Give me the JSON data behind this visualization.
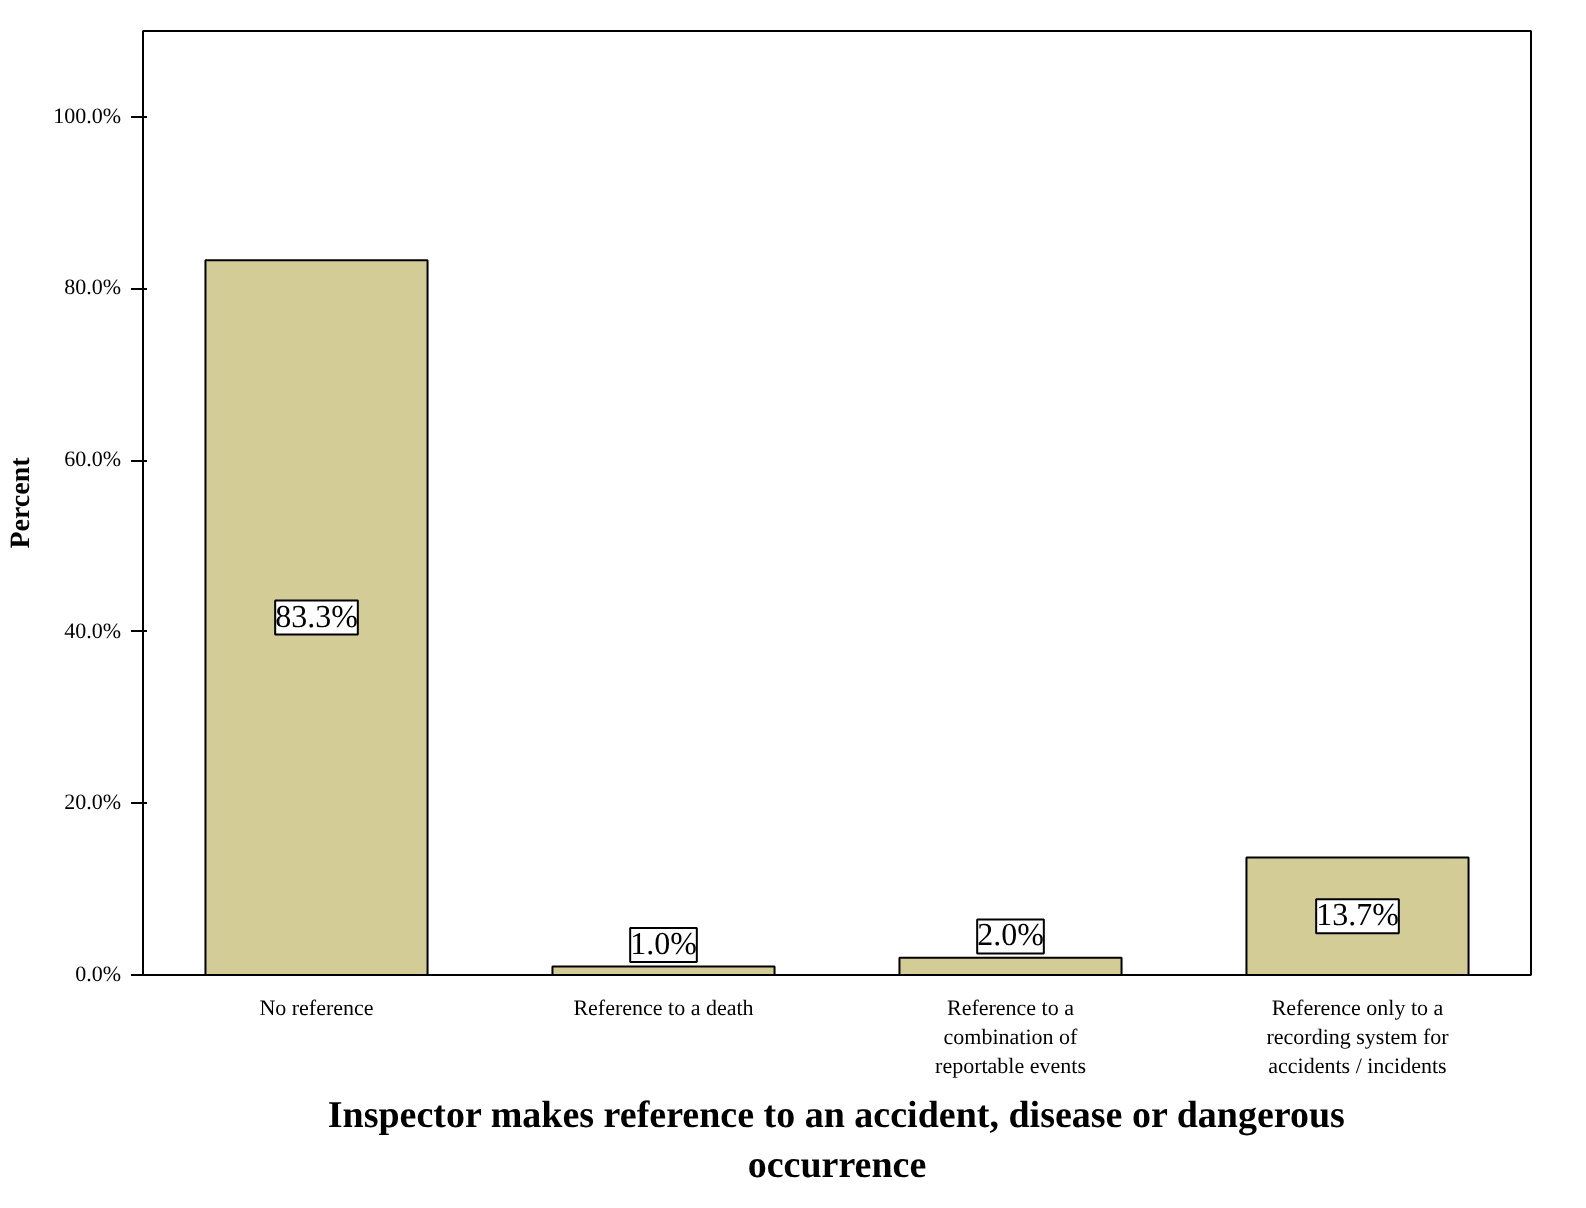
{
  "chart_data": {
    "type": "bar",
    "xlabel": "Inspector makes reference to an accident, disease or dangerous occurrence",
    "ylabel": "Percent",
    "categories": [
      "No reference",
      "Reference to a death",
      "Reference to a combination of reportable events",
      "Reference only to a recording system for accidents / incidents"
    ],
    "values": [
      83.3,
      1.0,
      2.0,
      13.7
    ],
    "color": "#d3cc96",
    "data_labels": true,
    "value_labels": [
      "83.3%",
      "1.0%",
      "2.0%",
      "13.7%"
    ],
    "ylim": [
      0,
      110
    ],
    "yticks": [
      {
        "value": 0,
        "label": "0.0%"
      },
      {
        "value": 20,
        "label": "20.0%"
      },
      {
        "value": 40,
        "label": "40.0%"
      },
      {
        "value": 60,
        "label": "60.0%"
      },
      {
        "value": 80,
        "label": "80.0%"
      },
      {
        "value": 100,
        "label": "100.0%"
      }
    ],
    "grid": false
  }
}
